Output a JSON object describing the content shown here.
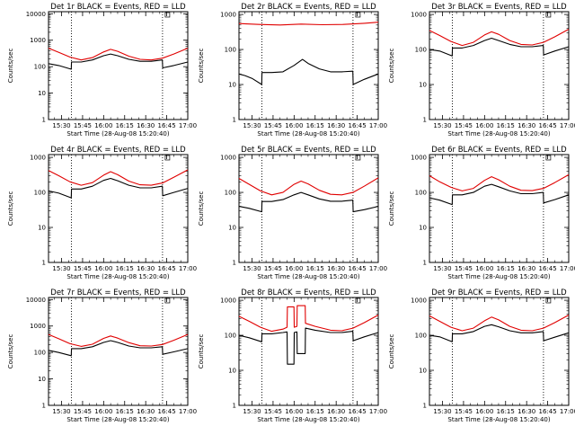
{
  "page_title": "",
  "colors": {
    "events": "#000000",
    "lld": "#e00000",
    "frame": "#000000",
    "background": "#ffffff"
  },
  "common": {
    "xlabel": "Start Time (28-Aug-08 15:20:40)",
    "ylabel": "Counts/sec",
    "x_ticks": [
      "15:30",
      "15:45",
      "16:00",
      "16:15",
      "16:30",
      "16:45",
      "17:00"
    ],
    "x_tick_minutes": [
      30,
      45,
      60,
      75,
      90,
      105,
      120
    ],
    "x_range_minutes": [
      20.7,
      120
    ],
    "x_minutes_origin": "15:00",
    "y_scale": "log",
    "y_tick_labels": [
      "1",
      "10",
      "100",
      "1000",
      "10000"
    ],
    "y_tick_values": [
      1,
      10,
      100,
      1000,
      10000
    ],
    "dotted_vline_times": [
      "15:37",
      "16:42"
    ],
    "dotted_vline_minutes": [
      37,
      102
    ],
    "corner_marker": "x"
  },
  "chart_data": [
    {
      "type": "line",
      "title": "Det 1r BLACK = Events, RED = LLD",
      "ylim": [
        1,
        12000
      ],
      "series": [
        {
          "name": "Events",
          "color": "#000000",
          "x": [
            20.7,
            28,
            36.9,
            37.1,
            44,
            52,
            60,
            65,
            70,
            78,
            86,
            94,
            101.9,
            102.1,
            110,
            120
          ],
          "y": [
            130,
            110,
            80,
            150,
            150,
            180,
            260,
            300,
            260,
            190,
            160,
            160,
            180,
            90,
            110,
            150
          ]
        },
        {
          "name": "LLD",
          "color": "#e00000",
          "x": [
            20.7,
            28,
            36,
            44,
            52,
            60,
            65,
            70,
            78,
            86,
            94,
            102,
            110,
            120
          ],
          "y": [
            500,
            350,
            230,
            180,
            220,
            360,
            450,
            380,
            250,
            190,
            180,
            210,
            300,
            500
          ]
        }
      ]
    },
    {
      "type": "line",
      "title": "Det 2r BLACK = Events, RED = LLD",
      "ylim": [
        1,
        1200
      ],
      "series": [
        {
          "name": "Events",
          "color": "#000000",
          "x": [
            20.7,
            25,
            30,
            36.9,
            37.1,
            44,
            52,
            60,
            66,
            70,
            78,
            86,
            94,
            101.9,
            102.1,
            110,
            120
          ],
          "y": [
            20,
            18,
            15,
            10,
            22,
            22,
            23,
            35,
            52,
            40,
            28,
            23,
            23,
            24,
            10,
            14,
            20
          ]
        },
        {
          "name": "LLD",
          "color": "#e00000",
          "x": [
            20.7,
            35,
            50,
            65,
            80,
            95,
            110,
            120
          ],
          "y": [
            550,
            520,
            500,
            530,
            510,
            520,
            560,
            600
          ]
        }
      ]
    },
    {
      "type": "line",
      "title": "Det 3r BLACK = Events, RED = LLD",
      "ylim": [
        1,
        1200
      ],
      "series": [
        {
          "name": "Events",
          "color": "#000000",
          "x": [
            20.7,
            28,
            36.9,
            37.1,
            44,
            52,
            60,
            65,
            70,
            78,
            86,
            94,
            101.9,
            102.1,
            110,
            120
          ],
          "y": [
            100,
            90,
            65,
            110,
            110,
            130,
            180,
            210,
            180,
            140,
            120,
            120,
            130,
            70,
            90,
            120
          ]
        },
        {
          "name": "LLD",
          "color": "#e00000",
          "x": [
            20.7,
            28,
            36,
            44,
            52,
            60,
            65,
            70,
            78,
            86,
            94,
            102,
            110,
            120
          ],
          "y": [
            350,
            250,
            170,
            130,
            160,
            260,
            320,
            270,
            180,
            140,
            135,
            160,
            230,
            380
          ]
        }
      ]
    },
    {
      "type": "line",
      "title": "Det 4r BLACK = Events, RED = LLD",
      "ylim": [
        1,
        1200
      ],
      "series": [
        {
          "name": "Events",
          "color": "#000000",
          "x": [
            20.7,
            28,
            36.9,
            37.1,
            44,
            52,
            60,
            65,
            70,
            78,
            86,
            94,
            101.9,
            102.1,
            110,
            120
          ],
          "y": [
            110,
            95,
            70,
            125,
            125,
            150,
            220,
            250,
            215,
            160,
            135,
            135,
            150,
            80,
            100,
            130
          ]
        },
        {
          "name": "LLD",
          "color": "#e00000",
          "x": [
            20.7,
            28,
            36,
            44,
            52,
            60,
            65,
            70,
            78,
            86,
            94,
            102,
            110,
            120
          ],
          "y": [
            420,
            300,
            200,
            160,
            190,
            310,
            390,
            320,
            210,
            165,
            160,
            185,
            270,
            440
          ]
        }
      ]
    },
    {
      "type": "line",
      "title": "Det 5r BLACK = Events, RED = LLD",
      "ylim": [
        1,
        1200
      ],
      "series": [
        {
          "name": "Events",
          "color": "#000000",
          "x": [
            20.7,
            28,
            36.9,
            37.1,
            44,
            52,
            60,
            65,
            70,
            78,
            86,
            94,
            101.9,
            102.1,
            110,
            120
          ],
          "y": [
            40,
            35,
            28,
            55,
            55,
            62,
            85,
            100,
            85,
            65,
            56,
            56,
            60,
            28,
            32,
            40
          ]
        },
        {
          "name": "LLD",
          "color": "#e00000",
          "x": [
            20.7,
            28,
            36,
            44,
            52,
            60,
            65,
            70,
            78,
            86,
            94,
            102,
            110,
            120
          ],
          "y": [
            250,
            170,
            110,
            85,
            100,
            170,
            210,
            175,
            115,
            88,
            85,
            100,
            150,
            260
          ]
        }
      ]
    },
    {
      "type": "line",
      "title": "Det 6r BLACK = Events, RED = LLD",
      "ylim": [
        1,
        1200
      ],
      "series": [
        {
          "name": "Events",
          "color": "#000000",
          "x": [
            20.7,
            28,
            36.9,
            37.1,
            44,
            52,
            60,
            65,
            70,
            78,
            86,
            94,
            101.9,
            102.1,
            110,
            120
          ],
          "y": [
            70,
            60,
            45,
            85,
            85,
            100,
            150,
            170,
            145,
            110,
            92,
            92,
            100,
            50,
            62,
            85
          ]
        },
        {
          "name": "LLD",
          "color": "#e00000",
          "x": [
            20.7,
            28,
            36,
            44,
            52,
            60,
            65,
            70,
            78,
            86,
            94,
            102,
            110,
            120
          ],
          "y": [
            300,
            200,
            140,
            110,
            130,
            220,
            280,
            230,
            150,
            115,
            112,
            130,
            190,
            320
          ]
        }
      ]
    },
    {
      "type": "line",
      "title": "Det 7r BLACK = Events, RED = LLD",
      "ylim": [
        1,
        12000
      ],
      "series": [
        {
          "name": "Events",
          "color": "#000000",
          "x": [
            20.7,
            28,
            36.9,
            37.1,
            44,
            52,
            60,
            65,
            70,
            78,
            86,
            94,
            101.9,
            102.1,
            110,
            120
          ],
          "y": [
            120,
            100,
            75,
            140,
            140,
            165,
            240,
            280,
            240,
            175,
            150,
            150,
            165,
            85,
            105,
            140
          ]
        },
        {
          "name": "LLD",
          "color": "#e00000",
          "x": [
            20.7,
            28,
            36,
            44,
            52,
            60,
            65,
            70,
            78,
            86,
            94,
            102,
            110,
            120
          ],
          "y": [
            480,
            330,
            215,
            170,
            205,
            340,
            420,
            350,
            235,
            180,
            175,
            200,
            290,
            480
          ]
        }
      ]
    },
    {
      "type": "line",
      "title": "Det 8r BLACK = Events, RED = LLD",
      "ylim": [
        1,
        1200
      ],
      "series": [
        {
          "name": "Events",
          "color": "#000000",
          "x": [
            20.7,
            28,
            36.9,
            37.1,
            44,
            52,
            55,
            55.2,
            59.9,
            60.1,
            62,
            62.2,
            67.9,
            68.1,
            75,
            86,
            94,
            101.9,
            102.1,
            110,
            120
          ],
          "y": [
            100,
            85,
            65,
            110,
            110,
            120,
            125,
            15,
            15,
            120,
            125,
            30,
            30,
            160,
            140,
            120,
            120,
            130,
            70,
            90,
            120
          ]
        },
        {
          "name": "LLD",
          "color": "#e00000",
          "x": [
            20.7,
            28,
            36,
            44,
            52,
            55,
            55.2,
            59.9,
            60.1,
            62,
            62.2,
            67.9,
            68.1,
            75,
            86,
            94,
            102,
            110,
            120
          ],
          "y": [
            350,
            250,
            170,
            130,
            150,
            170,
            650,
            650,
            170,
            180,
            700,
            700,
            220,
            180,
            140,
            135,
            160,
            230,
            380
          ]
        }
      ]
    },
    {
      "type": "line",
      "title": "Det 9r BLACK = Events, RED = LLD",
      "ylim": [
        1,
        1200
      ],
      "series": [
        {
          "name": "Events",
          "color": "#000000",
          "x": [
            20.7,
            28,
            36.9,
            37.1,
            44,
            52,
            60,
            65,
            70,
            78,
            86,
            94,
            101.9,
            102.1,
            110,
            120
          ],
          "y": [
            100,
            90,
            65,
            110,
            110,
            128,
            180,
            200,
            175,
            135,
            118,
            118,
            128,
            70,
            88,
            118
          ]
        },
        {
          "name": "LLD",
          "color": "#e00000",
          "x": [
            20.7,
            28,
            36,
            44,
            52,
            60,
            65,
            70,
            78,
            86,
            94,
            102,
            110,
            120
          ],
          "y": [
            360,
            250,
            170,
            135,
            160,
            260,
            330,
            275,
            180,
            140,
            135,
            160,
            230,
            380
          ]
        }
      ]
    }
  ]
}
